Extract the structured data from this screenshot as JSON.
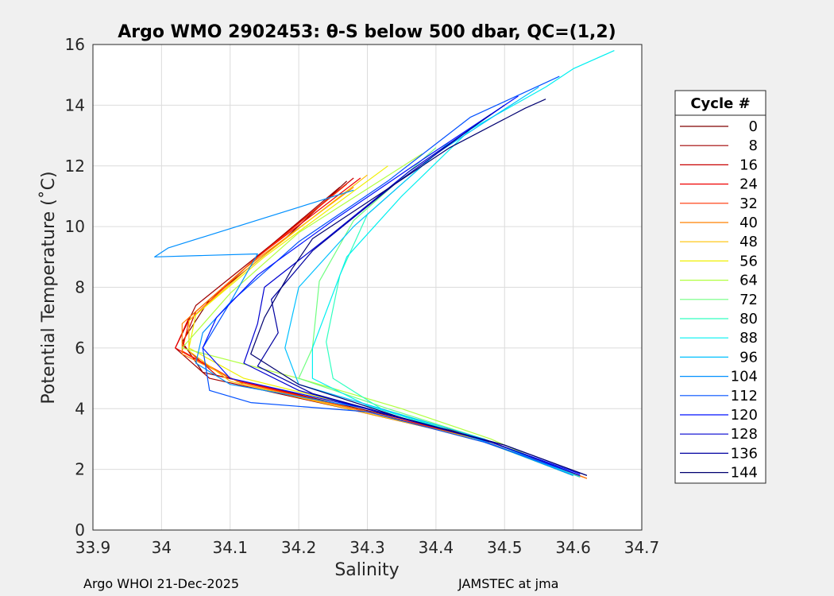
{
  "chart_data": {
    "type": "line",
    "title": "Argo WMO 2902453: θ-S below 500 dbar,  QC=(1,2)",
    "xlabel": "Salinity",
    "ylabel": "Potential Temperature (˚C)",
    "xlim": [
      33.9,
      34.7
    ],
    "ylim": [
      0,
      16
    ],
    "xticks": [
      "33.9",
      "34",
      "34.1",
      "34.2",
      "34.3",
      "34.4",
      "34.5",
      "34.6",
      "34.7"
    ],
    "xtick_values": [
      33.9,
      34.0,
      34.1,
      34.2,
      34.3,
      34.4,
      34.5,
      34.6,
      34.7
    ],
    "yticks": [
      "0",
      "2",
      "4",
      "6",
      "8",
      "10",
      "12",
      "14",
      "16"
    ],
    "ytick_values": [
      0,
      2,
      4,
      6,
      8,
      10,
      12,
      14,
      16
    ],
    "grid": true,
    "legend": {
      "title": "Cycle #",
      "placement": "right",
      "entries": [
        {
          "label": "0",
          "color": "#800000"
        },
        {
          "label": "8",
          "color": "#a00000"
        },
        {
          "label": "16",
          "color": "#c80000"
        },
        {
          "label": "24",
          "color": "#f00000"
        },
        {
          "label": "32",
          "color": "#ff3000"
        },
        {
          "label": "40",
          "color": "#ff8000"
        },
        {
          "label": "48",
          "color": "#ffc000"
        },
        {
          "label": "56",
          "color": "#f0f000"
        },
        {
          "label": "64",
          "color": "#b0ff40"
        },
        {
          "label": "72",
          "color": "#70ff80"
        },
        {
          "label": "80",
          "color": "#30ffc0"
        },
        {
          "label": "88",
          "color": "#00f0f0"
        },
        {
          "label": "96",
          "color": "#00c0ff"
        },
        {
          "label": "104",
          "color": "#0090ff"
        },
        {
          "label": "112",
          "color": "#0050ff"
        },
        {
          "label": "120",
          "color": "#0010ff"
        },
        {
          "label": "128",
          "color": "#0000d0"
        },
        {
          "label": "136",
          "color": "#0000a0"
        },
        {
          "label": "144",
          "color": "#000070"
        }
      ]
    },
    "series": [
      {
        "name": "0",
        "color": "#800000",
        "points": [
          [
            34.27,
            11.5
          ],
          [
            34.18,
            9.6
          ],
          [
            34.07,
            7.6
          ],
          [
            34.03,
            6.2
          ],
          [
            34.06,
            5.2
          ],
          [
            34.25,
            4.2
          ],
          [
            34.44,
            3.2
          ],
          [
            34.6,
            1.8
          ]
        ]
      },
      {
        "name": "8",
        "color": "#a00000",
        "points": [
          [
            34.26,
            11.3
          ],
          [
            34.16,
            9.4
          ],
          [
            34.05,
            7.4
          ],
          [
            34.02,
            6.0
          ],
          [
            34.07,
            5.0
          ],
          [
            34.27,
            4.0
          ],
          [
            34.46,
            3.0
          ],
          [
            34.61,
            1.75
          ]
        ]
      },
      {
        "name": "16",
        "color": "#c80000",
        "points": [
          [
            34.28,
            11.6
          ],
          [
            34.15,
            9.2
          ],
          [
            34.05,
            7.2
          ],
          [
            34.03,
            6.1
          ],
          [
            34.08,
            5.1
          ],
          [
            34.26,
            4.1
          ],
          [
            34.45,
            3.1
          ],
          [
            34.6,
            1.8
          ]
        ]
      },
      {
        "name": "24",
        "color": "#f00000",
        "points": [
          [
            34.29,
            11.6
          ],
          [
            34.14,
            9.0
          ],
          [
            34.04,
            7.0
          ],
          [
            34.02,
            6.0
          ],
          [
            34.1,
            5.0
          ],
          [
            34.28,
            4.0
          ],
          [
            34.47,
            3.0
          ],
          [
            34.62,
            1.7
          ]
        ]
      },
      {
        "name": "32",
        "color": "#ff3000",
        "points": [
          [
            34.27,
            11.4
          ],
          [
            34.13,
            8.8
          ],
          [
            34.04,
            6.9
          ],
          [
            34.03,
            5.9
          ],
          [
            34.11,
            4.9
          ],
          [
            34.3,
            3.9
          ],
          [
            34.48,
            2.9
          ],
          [
            34.61,
            1.75
          ]
        ]
      },
      {
        "name": "40",
        "color": "#ff8000",
        "points": [
          [
            34.28,
            11.3
          ],
          [
            34.12,
            8.6
          ],
          [
            34.03,
            6.8
          ],
          [
            34.03,
            5.8
          ],
          [
            34.12,
            4.8
          ],
          [
            34.3,
            3.9
          ],
          [
            34.47,
            2.9
          ],
          [
            34.62,
            1.7
          ]
        ]
      },
      {
        "name": "48",
        "color": "#ffc000",
        "points": [
          [
            34.3,
            11.7
          ],
          [
            34.13,
            8.7
          ],
          [
            34.04,
            6.9
          ],
          [
            34.04,
            5.9
          ],
          [
            34.1,
            4.9
          ],
          [
            34.29,
            3.9
          ],
          [
            34.46,
            3.0
          ],
          [
            34.6,
            1.8
          ]
        ]
      },
      {
        "name": "56",
        "color": "#f0f000",
        "points": [
          [
            34.33,
            12.0
          ],
          [
            34.15,
            9.0
          ],
          [
            34.05,
            7.1
          ],
          [
            34.04,
            6.0
          ],
          [
            34.12,
            5.0
          ],
          [
            34.3,
            4.0
          ],
          [
            34.45,
            3.1
          ],
          [
            34.6,
            1.8
          ]
        ]
      },
      {
        "name": "64",
        "color": "#b0ff40",
        "points": [
          [
            34.38,
            12.4
          ],
          [
            34.2,
            9.8
          ],
          [
            34.1,
            7.8
          ],
          [
            34.03,
            6.0
          ],
          [
            34.2,
            5.0
          ],
          [
            34.35,
            4.0
          ],
          [
            34.48,
            3.0
          ],
          [
            34.6,
            1.8
          ]
        ]
      },
      {
        "name": "72",
        "color": "#70ff80",
        "points": [
          [
            34.4,
            12.6
          ],
          [
            34.28,
            10.2
          ],
          [
            34.23,
            8.2
          ],
          [
            34.22,
            6.0
          ],
          [
            34.2,
            5.0
          ],
          [
            34.33,
            4.0
          ],
          [
            34.47,
            3.0
          ],
          [
            34.6,
            1.8
          ]
        ]
      },
      {
        "name": "80",
        "color": "#30ffc0",
        "points": [
          [
            34.42,
            12.8
          ],
          [
            34.3,
            10.4
          ],
          [
            34.26,
            8.4
          ],
          [
            34.24,
            6.2
          ],
          [
            34.25,
            5.0
          ],
          [
            34.32,
            4.0
          ],
          [
            34.46,
            3.0
          ],
          [
            34.6,
            1.8
          ]
        ]
      },
      {
        "name": "88",
        "color": "#00f0f0",
        "points": [
          [
            34.66,
            15.8
          ],
          [
            34.6,
            15.2
          ],
          [
            34.56,
            14.6
          ],
          [
            34.45,
            13.2
          ],
          [
            34.35,
            11.0
          ],
          [
            34.27,
            9.0
          ],
          [
            34.22,
            6.0
          ],
          [
            34.22,
            5.0
          ],
          [
            34.3,
            4.1
          ],
          [
            34.46,
            3.0
          ],
          [
            34.61,
            1.75
          ]
        ]
      },
      {
        "name": "96",
        "color": "#00c0ff",
        "points": [
          [
            34.55,
            14.6
          ],
          [
            34.4,
            12.4
          ],
          [
            34.28,
            10.0
          ],
          [
            34.2,
            8.0
          ],
          [
            34.18,
            6.0
          ],
          [
            34.2,
            4.8
          ],
          [
            34.32,
            4.0
          ],
          [
            34.47,
            3.0
          ],
          [
            34.6,
            1.8
          ]
        ]
      },
      {
        "name": "104",
        "color": "#0090ff",
        "points": [
          [
            34.28,
            11.2
          ],
          [
            34.01,
            9.3
          ],
          [
            33.99,
            9.0
          ],
          [
            34.14,
            9.1
          ],
          [
            34.1,
            7.5
          ],
          [
            34.06,
            6.5
          ],
          [
            34.05,
            5.5
          ],
          [
            34.1,
            4.8
          ],
          [
            34.3,
            4.0
          ],
          [
            34.45,
            3.1
          ],
          [
            34.6,
            1.8
          ]
        ]
      },
      {
        "name": "112",
        "color": "#0050ff",
        "points": [
          [
            34.58,
            14.95
          ],
          [
            34.45,
            13.6
          ],
          [
            34.33,
            11.5
          ],
          [
            34.2,
            9.5
          ],
          [
            34.1,
            7.5
          ],
          [
            34.06,
            6.0
          ],
          [
            34.07,
            4.6
          ],
          [
            34.13,
            4.2
          ],
          [
            34.3,
            3.9
          ],
          [
            34.47,
            2.9
          ],
          [
            34.61,
            1.8
          ]
        ]
      },
      {
        "name": "120",
        "color": "#0010ff",
        "points": [
          [
            34.52,
            14.3
          ],
          [
            34.38,
            12.2
          ],
          [
            34.25,
            10.2
          ],
          [
            34.14,
            8.4
          ],
          [
            34.08,
            7.0
          ],
          [
            34.06,
            6.0
          ],
          [
            34.1,
            5.0
          ],
          [
            34.3,
            4.0
          ],
          [
            34.48,
            2.9
          ],
          [
            34.61,
            1.85
          ]
        ]
      },
      {
        "name": "128",
        "color": "#0000d0",
        "points": [
          [
            34.5,
            14.0
          ],
          [
            34.36,
            11.8
          ],
          [
            34.24,
            9.6
          ],
          [
            34.15,
            8.0
          ],
          [
            34.14,
            6.8
          ],
          [
            34.12,
            5.5
          ],
          [
            34.2,
            4.6
          ],
          [
            34.33,
            3.8
          ],
          [
            34.48,
            2.9
          ],
          [
            34.61,
            1.8
          ]
        ]
      },
      {
        "name": "136",
        "color": "#0000a0",
        "points": [
          [
            34.48,
            13.7
          ],
          [
            34.34,
            11.4
          ],
          [
            34.22,
            9.2
          ],
          [
            34.16,
            7.6
          ],
          [
            34.17,
            6.5
          ],
          [
            34.14,
            5.4
          ],
          [
            34.22,
            4.5
          ],
          [
            34.35,
            3.7
          ],
          [
            34.5,
            2.8
          ],
          [
            34.62,
            1.8
          ]
        ]
      },
      {
        "name": "144",
        "color": "#000070",
        "points": [
          [
            34.56,
            14.2
          ],
          [
            34.53,
            13.9
          ],
          [
            34.42,
            12.6
          ],
          [
            34.3,
            10.8
          ],
          [
            34.22,
            9.6
          ],
          [
            34.19,
            8.6
          ],
          [
            34.15,
            7.0
          ],
          [
            34.13,
            5.8
          ],
          [
            34.2,
            4.8
          ],
          [
            34.35,
            3.7
          ],
          [
            34.5,
            2.8
          ],
          [
            34.62,
            1.8
          ]
        ]
      }
    ]
  },
  "footer": {
    "left": "Argo WHOI 21-Dec-2025",
    "right": "JAMSTEC at jma"
  }
}
